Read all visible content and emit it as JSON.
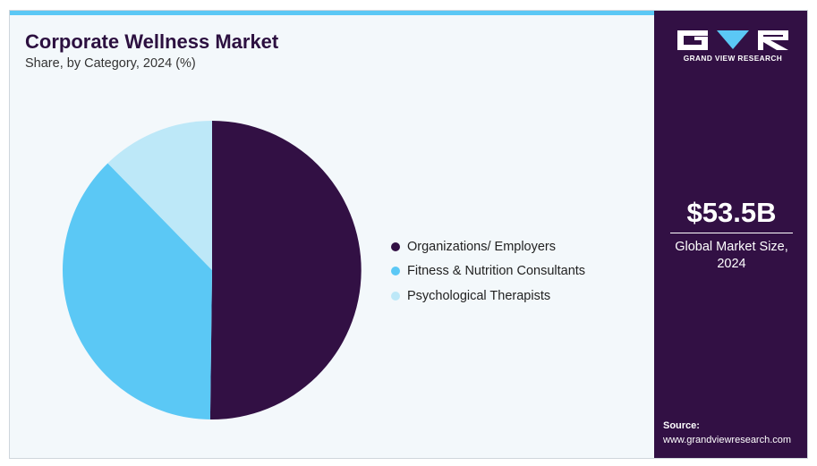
{
  "header": {
    "title": "Corporate Wellness Market",
    "subtitle": "Share, by Category, 2024 (%)"
  },
  "colors": {
    "accent": "#5bc8f5",
    "panel": "#321044",
    "background": "#f3f8fb"
  },
  "chart_data": {
    "type": "pie",
    "title": "Corporate Wellness Market",
    "subtitle": "Share, by Category, 2024 (%)",
    "legend_position": "right",
    "start_angle_deg": 0,
    "direction": "clockwise",
    "slices": [
      {
        "name": "Organizations/ Employers",
        "value": 50.2,
        "color": "#321044"
      },
      {
        "name": "Fitness & Nutrition Consultants",
        "value": 37.5,
        "color": "#5bc8f5"
      },
      {
        "name": "Psychological Therapists",
        "value": 12.3,
        "color": "#bde8f8"
      }
    ]
  },
  "sidebar": {
    "brand": "GRAND VIEW RESEARCH",
    "logo_icon": "gvr-logo-icon",
    "market_value": "$53.5B",
    "market_label": "Global Market Size, 2024",
    "source_label": "Source:",
    "source_url": "www.grandviewresearch.com"
  }
}
